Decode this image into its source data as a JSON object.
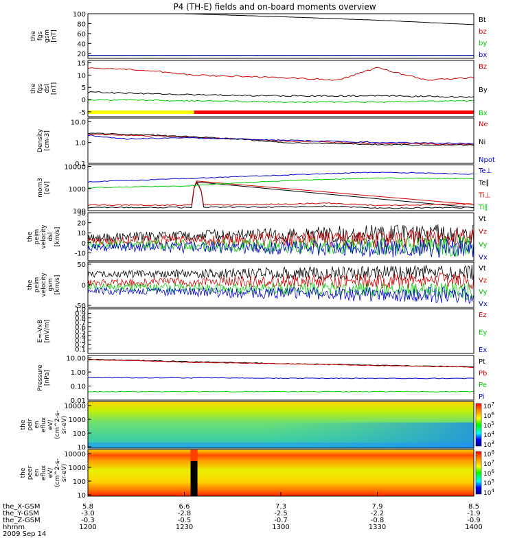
{
  "title": "P4 (TH-E) fields and on-board moments overview",
  "date_label": "2009 Sep 14",
  "ephemeris": [
    {
      "name": "the_X-GSM",
      "values": [
        "5.8",
        "6.6",
        "7.3",
        "7.9",
        "8.5"
      ]
    },
    {
      "name": "the_Y-GSM",
      "values": [
        "-3.0",
        "-2.8",
        "-2.5",
        "-2.2",
        "-1.9"
      ]
    },
    {
      "name": "the_Z-GSM",
      "values": [
        "-0.3",
        "-0.5",
        "-0.7",
        "-0.8",
        "-0.9"
      ]
    },
    {
      "name": "hhmm",
      "values": [
        "1200",
        "1230",
        "1300",
        "1330",
        "1400"
      ]
    }
  ],
  "colors": {
    "black": "#000000",
    "red": "#cc0000",
    "green": "#00cc00",
    "blue": "#0000cc",
    "yellow": "#ffff00"
  },
  "chart_data": [
    {
      "type": "line",
      "id": "fgs",
      "ylabel": [
        "the",
        "fgs",
        "gsm",
        "[nT]"
      ],
      "ylim": [
        10,
        100
      ],
      "scale": "linear",
      "yticks": [
        "20",
        "40",
        "60",
        "80",
        "100"
      ],
      "legend": [
        "Bt",
        "bz",
        "by",
        "bx"
      ],
      "series": [
        {
          "name": "Bt",
          "color": "#000000",
          "x": [
            12.0,
            12.5,
            13.0,
            13.5,
            14.0
          ],
          "y": [
            105,
            100,
            94,
            87,
            78
          ]
        },
        {
          "name": "bz",
          "color": "#cc0000",
          "x": [
            12.0,
            14.0
          ],
          "y": [
            16,
            16
          ]
        },
        {
          "name": "by",
          "color": "#00cc00",
          "x": [
            12.0,
            14.0
          ],
          "y": [
            16,
            16
          ]
        },
        {
          "name": "bx",
          "color": "#0000cc",
          "x": [
            12.0,
            14.0
          ],
          "y": [
            16,
            16
          ]
        }
      ]
    },
    {
      "type": "line",
      "id": "fgs_dsl",
      "ylabel": [
        "the",
        "fgs",
        "dsl",
        "[nT]"
      ],
      "ylim": [
        -7,
        16
      ],
      "scale": "linear",
      "yticks": [
        "-5",
        "0",
        "5",
        "10",
        "15"
      ],
      "legend": [
        "Bz",
        "By",
        "Bx"
      ],
      "bar": {
        "split": 12.55,
        "left_color": "#ffff00",
        "right_color": "#ff0000"
      },
      "series": [
        {
          "name": "Bz",
          "color": "#cc0000",
          "x": [
            12.0,
            12.3,
            12.55,
            13.0,
            13.3,
            13.5,
            13.75,
            14.0
          ],
          "y": [
            13,
            12,
            10,
            9,
            8,
            13,
            8,
            9
          ]
        },
        {
          "name": "By",
          "color": "#000000",
          "x": [
            12.0,
            12.5,
            13.0,
            13.5,
            14.0
          ],
          "y": [
            3,
            2,
            1.5,
            1.5,
            1
          ]
        },
        {
          "name": "Bx",
          "color": "#00cc00",
          "x": [
            12.0,
            12.5,
            13.0,
            13.5,
            14.0
          ],
          "y": [
            0,
            -0.5,
            -1,
            -1,
            -0.5
          ]
        }
      ]
    },
    {
      "type": "line",
      "id": "density",
      "ylabel": [
        "Density",
        "[cm-3]"
      ],
      "ylim": [
        0.1,
        15
      ],
      "scale": "log",
      "yticks": [
        "0.1",
        "1.0",
        "10.0"
      ],
      "legend": [
        "Ne",
        "Ni",
        "Npot"
      ],
      "series": [
        {
          "name": "Ne",
          "color": "#cc0000",
          "x": [
            12.0,
            12.5,
            13.0,
            13.5,
            14.0
          ],
          "y": [
            2.6,
            1.8,
            1.2,
            0.9,
            0.8
          ]
        },
        {
          "name": "Ni",
          "color": "#000000",
          "x": [
            12.0,
            12.5,
            13.0,
            13.5,
            14.0
          ],
          "y": [
            2.8,
            2.0,
            1.0,
            0.8,
            0.75
          ]
        },
        {
          "name": "Npot",
          "color": "#0000cc",
          "x": [
            12.0,
            12.2,
            12.5,
            13.0,
            13.5,
            14.0
          ],
          "y": [
            2.2,
            1.5,
            1.7,
            1.3,
            1.0,
            0.9
          ]
        }
      ]
    },
    {
      "type": "line",
      "id": "temperature",
      "ylabel": [
        "mom3",
        "[eV]"
      ],
      "ylim": [
        100,
        12000
      ],
      "scale": "log",
      "yticks": [
        "100",
        "1000",
        "10000"
      ],
      "legend": [
        "Te⊥",
        "Te∥",
        "Ti⊥",
        "Ti∥"
      ],
      "series": [
        {
          "name": "Te⊥",
          "color": "#0000cc",
          "x": [
            12.0,
            12.5,
            13.0,
            13.5,
            14.0
          ],
          "y": [
            2000,
            2800,
            4000,
            5500,
            4500
          ]
        },
        {
          "name": "Te∥",
          "color": "#000000",
          "x": [
            12.0,
            12.54,
            12.56,
            12.6,
            13.0,
            13.25,
            13.5,
            14.0
          ],
          "y": [
            140,
            140,
            2000,
            140,
            150,
            160,
            130,
            140
          ]
        },
        {
          "name": "Ti⊥",
          "color": "#cc0000",
          "x": [
            12.0,
            12.54,
            12.56,
            12.6,
            13.0,
            13.25,
            13.5,
            14.0
          ],
          "y": [
            180,
            180,
            2200,
            180,
            200,
            220,
            170,
            200
          ]
        },
        {
          "name": "Ti∥",
          "color": "#00cc00",
          "x": [
            12.0,
            12.5,
            13.0,
            13.5,
            14.0
          ],
          "y": [
            1100,
            1300,
            2200,
            3000,
            2800
          ]
        }
      ]
    },
    {
      "type": "line",
      "id": "peim_velocity_dsl",
      "ylabel": [
        "the",
        "peim",
        "velocity",
        "dsl",
        "[km/s]"
      ],
      "ylim": [
        -18,
        30
      ],
      "scale": "linear",
      "yticks": [
        "-10",
        "0",
        "10",
        "20",
        "30"
      ],
      "legend": [
        "Vt",
        "Vz",
        "Vy",
        "Vx"
      ],
      "series": [
        {
          "name": "Vt",
          "color": "#000000",
          "x": [
            12.0,
            13.0,
            14.0
          ],
          "y": [
            5,
            8,
            10
          ]
        },
        {
          "name": "Vz",
          "color": "#cc0000",
          "x": [
            12.0,
            13.0,
            14.0
          ],
          "y": [
            2,
            3,
            4
          ]
        },
        {
          "name": "Vy",
          "color": "#00cc00",
          "x": [
            12.0,
            13.0,
            14.0
          ],
          "y": [
            -2,
            -3,
            -4
          ]
        },
        {
          "name": "Vx",
          "color": "#0000cc",
          "x": [
            12.0,
            13.0,
            14.0
          ],
          "y": [
            -4,
            -5,
            -6
          ]
        }
      ]
    },
    {
      "type": "line",
      "id": "peim_velocity_gsm",
      "ylabel": [
        "the",
        "peim",
        "velocity",
        "gsm",
        "[km/s]"
      ],
      "ylim": [
        -55,
        55
      ],
      "scale": "linear",
      "yticks": [
        "-50",
        "0",
        "50"
      ],
      "legend": [
        "Vt",
        "Vz",
        "Vy",
        "Vx"
      ],
      "series": [
        {
          "name": "Vt",
          "color": "#000000",
          "x": [
            12.0,
            13.0,
            14.0
          ],
          "y": [
            25,
            28,
            30
          ]
        },
        {
          "name": "Vz",
          "color": "#cc0000",
          "x": [
            12.0,
            13.0,
            14.0
          ],
          "y": [
            5,
            8,
            10
          ]
        },
        {
          "name": "Vy",
          "color": "#00cc00",
          "x": [
            12.0,
            13.0,
            14.0
          ],
          "y": [
            -5,
            -10,
            -15
          ]
        },
        {
          "name": "Vx",
          "color": "#0000cc",
          "x": [
            12.0,
            13.0,
            14.0
          ],
          "y": [
            -15,
            -20,
            -25
          ]
        }
      ]
    },
    {
      "type": "line",
      "id": "efield",
      "ylabel": [
        "E=-VxB",
        "[mV/m]"
      ],
      "ylim": [
        0,
        1.0
      ],
      "scale": "linear",
      "yticks": [
        "0.1",
        "0.2",
        "0.3",
        "0.4",
        "0.5",
        "0.6",
        "0.7",
        "0.8",
        "0.9",
        "1.0"
      ],
      "legend": [
        "Ez",
        "Ey",
        "Ex"
      ],
      "series": []
    },
    {
      "type": "line",
      "id": "pressure",
      "ylabel": [
        "Pressure",
        "[nPa]"
      ],
      "ylim": [
        0.01,
        15
      ],
      "scale": "log",
      "yticks": [
        "0.01",
        "0.10",
        "1.00",
        "10.00"
      ],
      "legend": [
        "Pt",
        "Pb",
        "Pe",
        "Pi"
      ],
      "series": [
        {
          "name": "Pt",
          "color": "#000000",
          "x": [
            12.0,
            12.5,
            13.0,
            13.5,
            14.0
          ],
          "y": [
            8.0,
            5.5,
            4.0,
            3.0,
            2.3
          ]
        },
        {
          "name": "Pb",
          "color": "#cc0000",
          "x": [
            12.0,
            12.5,
            13.0,
            13.5,
            14.0
          ],
          "y": [
            7.5,
            5.0,
            3.8,
            2.9,
            2.2
          ]
        },
        {
          "name": "Pe",
          "color": "#00cc00",
          "x": [
            12.0,
            12.5,
            13.0,
            13.5,
            14.0
          ],
          "y": [
            0.04,
            0.04,
            0.04,
            0.04,
            0.04
          ]
        },
        {
          "name": "Pi",
          "color": "#0000cc",
          "x": [
            12.0,
            12.5,
            13.0,
            13.5,
            14.0
          ],
          "y": [
            0.4,
            0.38,
            0.36,
            0.35,
            0.35
          ]
        }
      ]
    },
    {
      "type": "heatmap",
      "id": "peir_spec",
      "ylabel": [
        "the",
        "peir",
        "en",
        "eflux",
        "eV/",
        "(cm^2-s-",
        "sr-eV)"
      ],
      "ylim": [
        8,
        20000
      ],
      "scale": "log",
      "yticks": [
        "10",
        "100",
        "1000",
        "10000"
      ],
      "colorbar_ticks": [
        "10^3",
        "10^4",
        "10^5",
        "10^6",
        "10^7"
      ]
    },
    {
      "type": "heatmap",
      "id": "peer_spec",
      "ylabel": [
        "the",
        "peer",
        "en",
        "eflux",
        "eV/",
        "(cm^2-s-",
        "sr-eV)"
      ],
      "ylim": [
        8,
        20000
      ],
      "scale": "log",
      "yticks": [
        "10",
        "100",
        "1000",
        "10000"
      ],
      "colorbar_ticks": [
        "10^4",
        "10^5",
        "10^6",
        "10^7",
        "10^8"
      ]
    }
  ]
}
